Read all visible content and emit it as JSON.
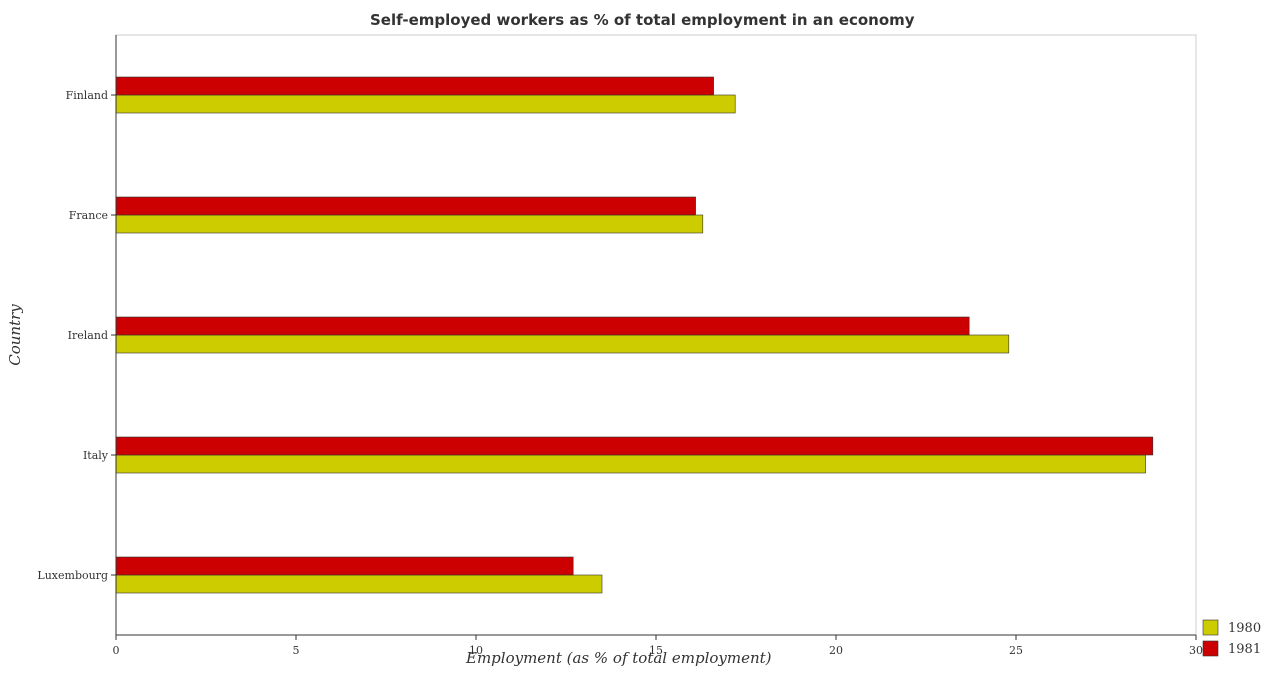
{
  "chart_data": {
    "type": "bar",
    "orientation": "horizontal",
    "title": "Self-employed workers as % of total employment in an economy",
    "xlabel": "Employment (as % of total employment)",
    "ylabel": "Country",
    "categories": [
      "Finland",
      "France",
      "Ireland",
      "Italy",
      "Luxembourg"
    ],
    "series": [
      {
        "name": "1980",
        "color": "#cccc00",
        "values": [
          17.2,
          16.3,
          24.8,
          28.6,
          13.5
        ]
      },
      {
        "name": "1981",
        "color": "#cc0000",
        "values": [
          16.6,
          16.1,
          23.7,
          28.8,
          12.7
        ]
      }
    ],
    "xlim": [
      0,
      30
    ],
    "xticks": [
      "0",
      "5",
      "10",
      "15",
      "20",
      "25",
      "30"
    ],
    "grid": false,
    "legend_position": "bottom-right"
  }
}
